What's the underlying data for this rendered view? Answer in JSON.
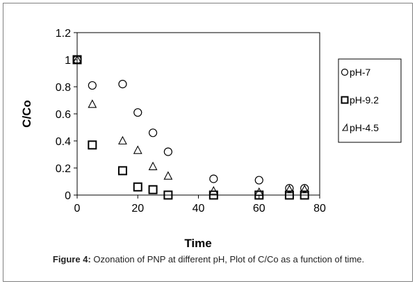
{
  "caption": {
    "label": "Figure 4:",
    "text": " Ozonation of PNP at different pH, Plot of C/Co as a function of time."
  },
  "chart_data": {
    "type": "scatter",
    "title": "",
    "xlabel": "Time",
    "ylabel": "C/Co",
    "xlim": [
      0,
      80
    ],
    "ylim": [
      0,
      1.2
    ],
    "xticks": [
      0,
      20,
      40,
      60,
      80
    ],
    "yticks": [
      0,
      0.2,
      0.4,
      0.6,
      0.8,
      1,
      1.2
    ],
    "ytick_labels": [
      "0",
      "0.2",
      "0.4",
      "0.6",
      "0.8",
      "1",
      "1.2"
    ],
    "grid": false,
    "legend_position": "right",
    "series": [
      {
        "name": "pH-7",
        "marker": "circle",
        "x": [
          0,
          5,
          15,
          20,
          25,
          30,
          45,
          60,
          70,
          75
        ],
        "y": [
          1.0,
          0.81,
          0.82,
          0.61,
          0.46,
          0.32,
          0.12,
          0.11,
          0.05,
          0.05
        ]
      },
      {
        "name": "pH-9.2",
        "marker": "square",
        "x": [
          0,
          5,
          15,
          20,
          25,
          30,
          45,
          60,
          70,
          75
        ],
        "y": [
          1.0,
          0.37,
          0.18,
          0.06,
          0.04,
          0.0,
          0.0,
          0.0,
          0.0,
          0.0
        ]
      },
      {
        "name": "pH-4.5",
        "marker": "triangle",
        "x": [
          0,
          5,
          15,
          20,
          25,
          30,
          45,
          60,
          70,
          75
        ],
        "y": [
          1.0,
          0.67,
          0.4,
          0.33,
          0.21,
          0.14,
          0.03,
          0.02,
          0.04,
          0.04
        ]
      }
    ],
    "colors": {
      "marker": "#000000",
      "axis": "#000000",
      "frame": "#7f7f7f"
    }
  }
}
